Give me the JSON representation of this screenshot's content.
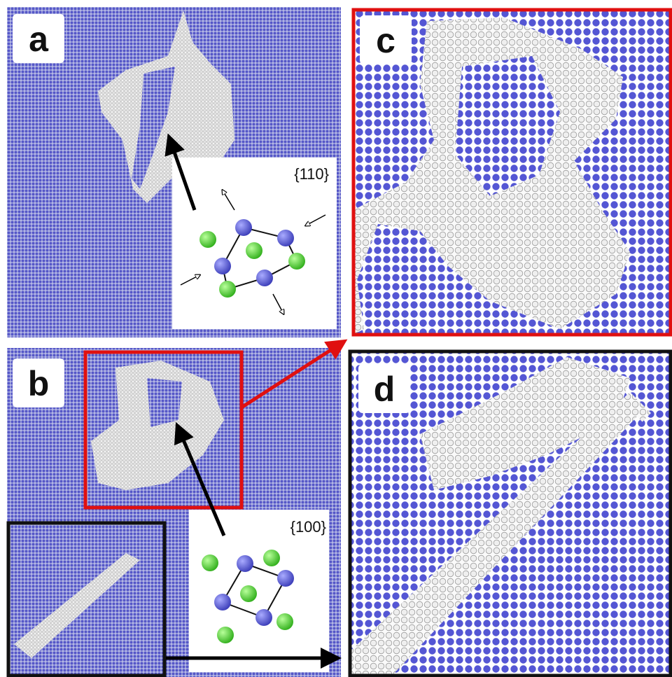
{
  "panels": [
    {
      "label": "a"
    },
    {
      "label": "b"
    },
    {
      "label": "c"
    },
    {
      "label": "d"
    }
  ],
  "insets": [
    {
      "label": "{110}"
    },
    {
      "label": "{100}"
    }
  ]
}
